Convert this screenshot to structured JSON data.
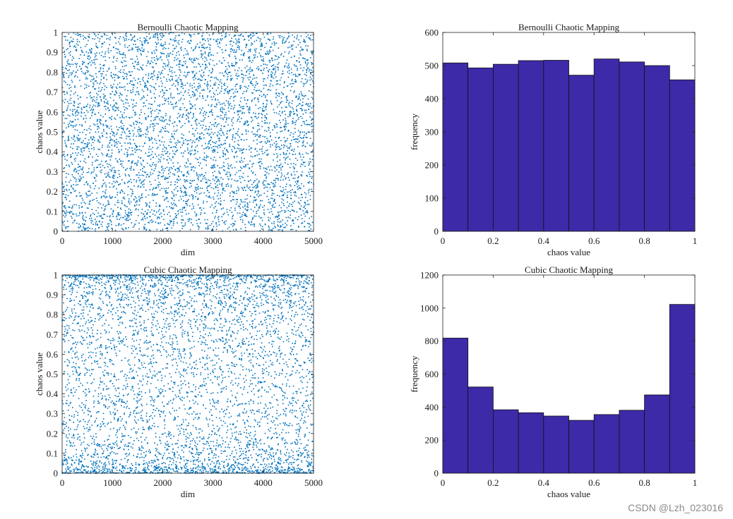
{
  "watermark": "CSDN @Lzh_023016",
  "colors": {
    "scatter": "#0072BD",
    "bar": "#3c2aa8",
    "bar_edge": "#111111",
    "axis": "#222222"
  },
  "chart_data": [
    {
      "id": "bernoulli-scatter",
      "type": "scatter",
      "title": "Bernoulli Chaotic Mapping",
      "xlabel": "dim",
      "ylabel": "chaos value",
      "xlim": [
        0,
        5000
      ],
      "ylim": [
        0,
        1
      ],
      "xticks": [
        0,
        1000,
        2000,
        3000,
        4000,
        5000
      ],
      "yticks": [
        0,
        0.1,
        0.2,
        0.3,
        0.4,
        0.5,
        0.6,
        0.7,
        0.8,
        0.9,
        1
      ],
      "n_points": 5000,
      "distribution": "uniform",
      "grid": false
    },
    {
      "id": "bernoulli-histogram",
      "type": "bar",
      "title": "Bernoulli Chaotic Mapping",
      "xlabel": "chaos value",
      "ylabel": "frequency",
      "bin_edges": [
        0,
        0.1,
        0.2,
        0.3,
        0.4,
        0.5,
        0.6,
        0.7,
        0.8,
        0.9,
        1.0
      ],
      "values": [
        508,
        493,
        504,
        515,
        516,
        471,
        520,
        511,
        500,
        457
      ],
      "xlim": [
        0,
        1
      ],
      "ylim": [
        0,
        600
      ],
      "xticks": [
        0,
        0.2,
        0.4,
        0.6,
        0.8,
        1
      ],
      "yticks": [
        0,
        100,
        200,
        300,
        400,
        500,
        600
      ],
      "grid": false
    },
    {
      "id": "cubic-scatter",
      "type": "scatter",
      "title": "Cubic Chaotic Mapping",
      "xlabel": "dim",
      "ylabel": "chaos value",
      "xlim": [
        0,
        5000
      ],
      "ylim": [
        0,
        1
      ],
      "xticks": [
        0,
        1000,
        2000,
        3000,
        4000,
        5000
      ],
      "yticks": [
        0,
        0.1,
        0.2,
        0.3,
        0.4,
        0.5,
        0.6,
        0.7,
        0.8,
        0.9,
        1
      ],
      "n_points": 5000,
      "distribution": "u-shaped (dense near 0 and 1)",
      "grid": false
    },
    {
      "id": "cubic-histogram",
      "type": "bar",
      "title": "Cubic Chaotic Mapping",
      "xlabel": "chaos value",
      "ylabel": "frequency",
      "bin_edges": [
        0,
        0.1,
        0.2,
        0.3,
        0.4,
        0.5,
        0.6,
        0.7,
        0.8,
        0.9,
        1.0
      ],
      "values": [
        818,
        522,
        384,
        366,
        346,
        320,
        355,
        381,
        474,
        1022
      ],
      "xlim": [
        0,
        1
      ],
      "ylim": [
        0,
        1200
      ],
      "xticks": [
        0,
        0.2,
        0.4,
        0.6,
        0.8,
        1
      ],
      "yticks": [
        0,
        200,
        400,
        600,
        800,
        1000,
        1200
      ],
      "grid": false
    }
  ]
}
